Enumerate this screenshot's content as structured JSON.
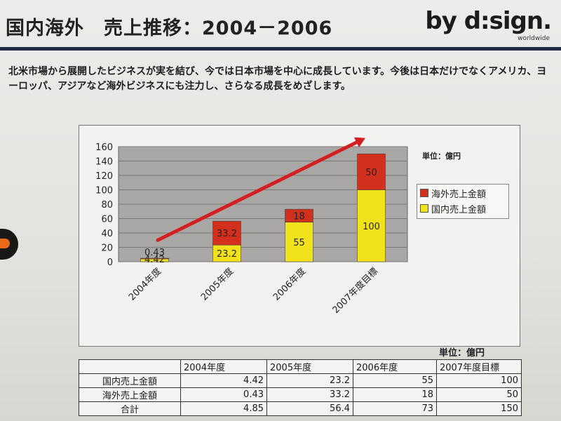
{
  "slide": {
    "title": "国内海外　売上推移：2004－2006",
    "logo": "by d:sign.",
    "logo_sub": "worldwide",
    "description": "北米市場から展開したビジネスが実を結び、今では日本市場を中心に成長しています。今後は日本だけでなくアメリカ、ヨーロッパ、アジアなど海外ビジネスにも注力し、さらなる成長をめざします。",
    "chart_unit": "単位：億円",
    "table_unit": "単位：億円"
  },
  "colors": {
    "domestic": "#f1e21c",
    "overseas": "#d22f1c",
    "arrow": "#d41f22",
    "plot_bg": "#a9a7a5",
    "rule": "#1f2a44"
  },
  "chart_data": {
    "type": "bar",
    "stacked": true,
    "categories": [
      "2004年度",
      "2005年度",
      "2006年度",
      "2007年度目標"
    ],
    "series": [
      {
        "name": "国内売上金額",
        "values": [
          4.42,
          23.2,
          55,
          100
        ],
        "labels": [
          "4.42",
          "23.2",
          "55",
          "100"
        ]
      },
      {
        "name": "海外売上金額",
        "values": [
          0.43,
          33.2,
          18,
          50
        ],
        "labels": [
          "0.43",
          "33.2",
          "18",
          "50"
        ]
      }
    ],
    "y_ticks": [
      "0",
      "20",
      "40",
      "60",
      "80",
      "100",
      "120",
      "140",
      "160"
    ],
    "ylim": [
      0,
      160
    ],
    "grid": true,
    "legend": "right",
    "annotation": "growth-arrow"
  },
  "table": {
    "headers": [
      "",
      "2004年度",
      "2005年度",
      "2006年度",
      "2007年度目標"
    ],
    "rows": [
      {
        "label": "国内売上金額",
        "values": [
          "4.42",
          "23.2",
          "55",
          "100"
        ]
      },
      {
        "label": "海外売上金額",
        "values": [
          "0.43",
          "33.2",
          "18",
          "50"
        ]
      },
      {
        "label": "合計",
        "values": [
          "4.85",
          "56.4",
          "73",
          "150"
        ]
      }
    ]
  }
}
